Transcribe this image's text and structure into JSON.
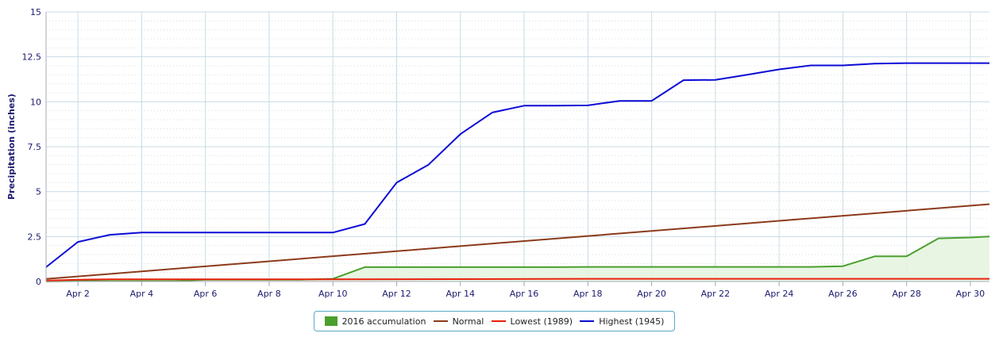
{
  "chart_data": {
    "type": "line",
    "title": "",
    "xlabel": "",
    "ylabel": "Precipitation (inches)",
    "ylim": [
      0,
      15
    ],
    "xlim": [
      1,
      30.6
    ],
    "y_ticks": [
      "0",
      "2.5",
      "5",
      "7.5",
      "10",
      "12.5",
      "15"
    ],
    "x_ticks": [
      {
        "x": 2,
        "label": "Apr 2"
      },
      {
        "x": 4,
        "label": "Apr 4"
      },
      {
        "x": 6,
        "label": "Apr 6"
      },
      {
        "x": 8,
        "label": "Apr 8"
      },
      {
        "x": 10,
        "label": "Apr 10"
      },
      {
        "x": 12,
        "label": "Apr 12"
      },
      {
        "x": 14,
        "label": "Apr 14"
      },
      {
        "x": 16,
        "label": "Apr 16"
      },
      {
        "x": 18,
        "label": "Apr 18"
      },
      {
        "x": 20,
        "label": "Apr 20"
      },
      {
        "x": 22,
        "label": "Apr 22"
      },
      {
        "x": 24,
        "label": "Apr 24"
      },
      {
        "x": 26,
        "label": "Apr 26"
      },
      {
        "x": 28,
        "label": "Apr 28"
      },
      {
        "x": 30,
        "label": "Apr 30"
      }
    ],
    "grid": true,
    "legend_position": "bottom-center",
    "series": [
      {
        "name": "2016 accumulation",
        "kind": "area",
        "color": "#4aa02c",
        "fill": "#e6f4e0",
        "x": [
          1,
          2,
          3,
          4,
          5,
          6,
          7,
          8,
          9,
          10,
          11,
          12,
          13,
          14,
          15,
          16,
          17,
          18,
          19,
          20,
          21,
          22,
          23,
          24,
          25,
          26,
          27,
          28,
          29,
          30,
          30.6
        ],
        "values": [
          0,
          0.02,
          0.02,
          0.02,
          0.02,
          0.1,
          0.1,
          0.1,
          0.1,
          0.15,
          0.8,
          0.8,
          0.8,
          0.8,
          0.8,
          0.8,
          0.8,
          0.81,
          0.81,
          0.81,
          0.81,
          0.81,
          0.81,
          0.81,
          0.81,
          0.85,
          1.4,
          1.4,
          2.4,
          2.45,
          2.5
        ]
      },
      {
        "name": "Normal",
        "kind": "line",
        "color": "#8b3a1a",
        "x": [
          1,
          30.6
        ],
        "values": [
          0.14,
          4.3
        ]
      },
      {
        "name": "Lowest (1989)",
        "kind": "line",
        "color": "#e8200a",
        "x": [
          1,
          2,
          3,
          6,
          10,
          18,
          30.6
        ],
        "values": [
          0.05,
          0.1,
          0.12,
          0.12,
          0.12,
          0.15,
          0.15
        ]
      },
      {
        "name": "Highest (1945)",
        "kind": "line",
        "color": "#0b0bd6",
        "x": [
          1,
          2,
          3,
          4,
          5,
          6,
          7,
          8,
          9,
          10,
          11,
          12,
          13,
          14,
          15,
          16,
          17,
          18,
          19,
          20,
          21,
          22,
          23,
          24,
          25,
          26,
          27,
          28,
          29,
          30,
          30.6
        ],
        "values": [
          0.8,
          2.2,
          2.6,
          2.72,
          2.72,
          2.72,
          2.72,
          2.72,
          2.72,
          2.72,
          3.2,
          5.5,
          6.5,
          8.2,
          9.4,
          9.78,
          9.78,
          9.8,
          10.05,
          10.05,
          11.2,
          11.22,
          11.5,
          11.8,
          12.02,
          12.02,
          12.12,
          12.15,
          12.15,
          12.15,
          12.15
        ]
      }
    ]
  }
}
